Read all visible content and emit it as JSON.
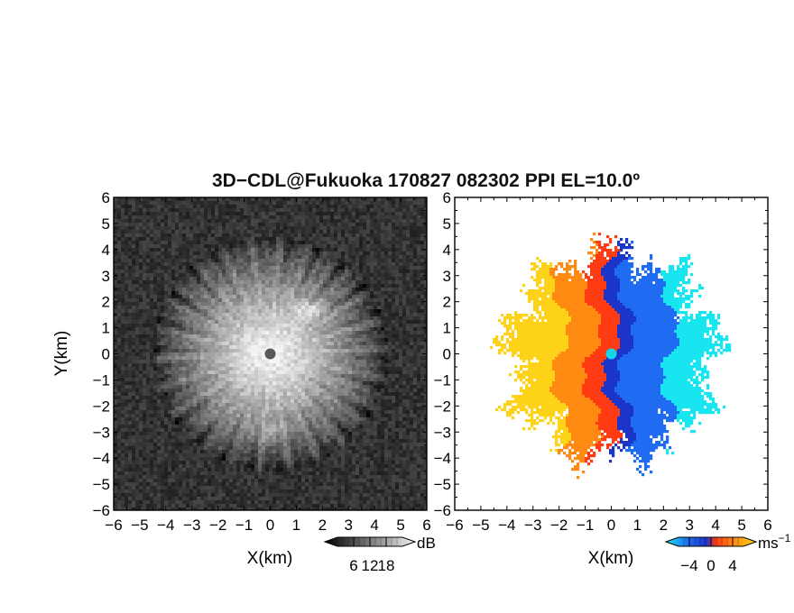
{
  "chart_data": {
    "title": "3D−CDL@Fukuoka 170827 082302 PPI EL=10.0º",
    "panels": [
      {
        "name": "",
        "type": "heatmap",
        "xlabel": "X(km)",
        "ylabel": "Y(km)",
        "xlim": [
          -6,
          6
        ],
        "ylim": [
          -6,
          6
        ],
        "xticks": [
          -6,
          -5,
          -4,
          -3,
          -2,
          -1,
          0,
          1,
          2,
          3,
          4,
          5,
          6
        ],
        "yticks": [
          -6,
          -5,
          -4,
          -3,
          -2,
          -1,
          0,
          1,
          2,
          3,
          4,
          5,
          6
        ],
        "xtick_labels": [
          "−6",
          "−5",
          "−4",
          "−3",
          "−2",
          "−1",
          "0",
          "1",
          "2",
          "3",
          "4",
          "5",
          "6"
        ],
        "ytick_labels": [
          "−6",
          "−5",
          "−4",
          "−3",
          "−2",
          "−1",
          "0",
          "1",
          "2",
          "3",
          "4",
          "5",
          "6"
        ],
        "colormap": "grayscale",
        "colorbar": {
          "unit": "dB",
          "ticks": [
            6,
            12,
            18
          ],
          "tick_labels": [
            "6",
            "12",
            "18"
          ],
          "range": [
            0,
            24
          ]
        },
        "echo_radius_km": 4.5,
        "features": [
          {
            "x": 1.5,
            "y": 1.7,
            "value": 20
          },
          {
            "x": 0.0,
            "y": -3.0,
            "value": 17
          }
        ]
      },
      {
        "name": "",
        "type": "heatmap",
        "xlabel": "X(km)",
        "ylabel": "",
        "xlim": [
          -6,
          6
        ],
        "ylim": [
          -6,
          6
        ],
        "xticks": [
          -6,
          -5,
          -4,
          -3,
          -2,
          -1,
          0,
          1,
          2,
          3,
          4,
          5,
          6
        ],
        "yticks": [
          -6,
          -5,
          -4,
          -3,
          -2,
          -1,
          0,
          1,
          2,
          3,
          4,
          5,
          6
        ],
        "xtick_labels": [
          "−6",
          "−5",
          "−4",
          "−3",
          "−2",
          "−1",
          "0",
          "1",
          "2",
          "3",
          "4",
          "5",
          "6"
        ],
        "ytick_labels": [
          "−6",
          "−5",
          "−4",
          "−3",
          "−2",
          "−1",
          "0",
          "1",
          "2",
          "3",
          "4",
          "5",
          "6"
        ],
        "colormap": "diverging",
        "colorbar": {
          "unit": "ms",
          "unit_exp": "−1",
          "ticks": [
            -4,
            0,
            4
          ],
          "tick_labels": [
            "−4",
            "0",
            "4"
          ],
          "range": [
            -6,
            6
          ]
        },
        "echo_radius_km": 4.0,
        "pattern": "west half positive (yellow-orange-red), east half negative (blue-cyan)"
      }
    ]
  },
  "colors": {
    "negative_far": "#17e6f0",
    "negative": "#1f6cf2",
    "negative_dark": "#1a35c8",
    "positive_near": "#ff3b14",
    "positive": "#ff8a12",
    "positive_far": "#ffd21a",
    "marker_left": "#595959",
    "marker_right": "#19d3e6"
  }
}
